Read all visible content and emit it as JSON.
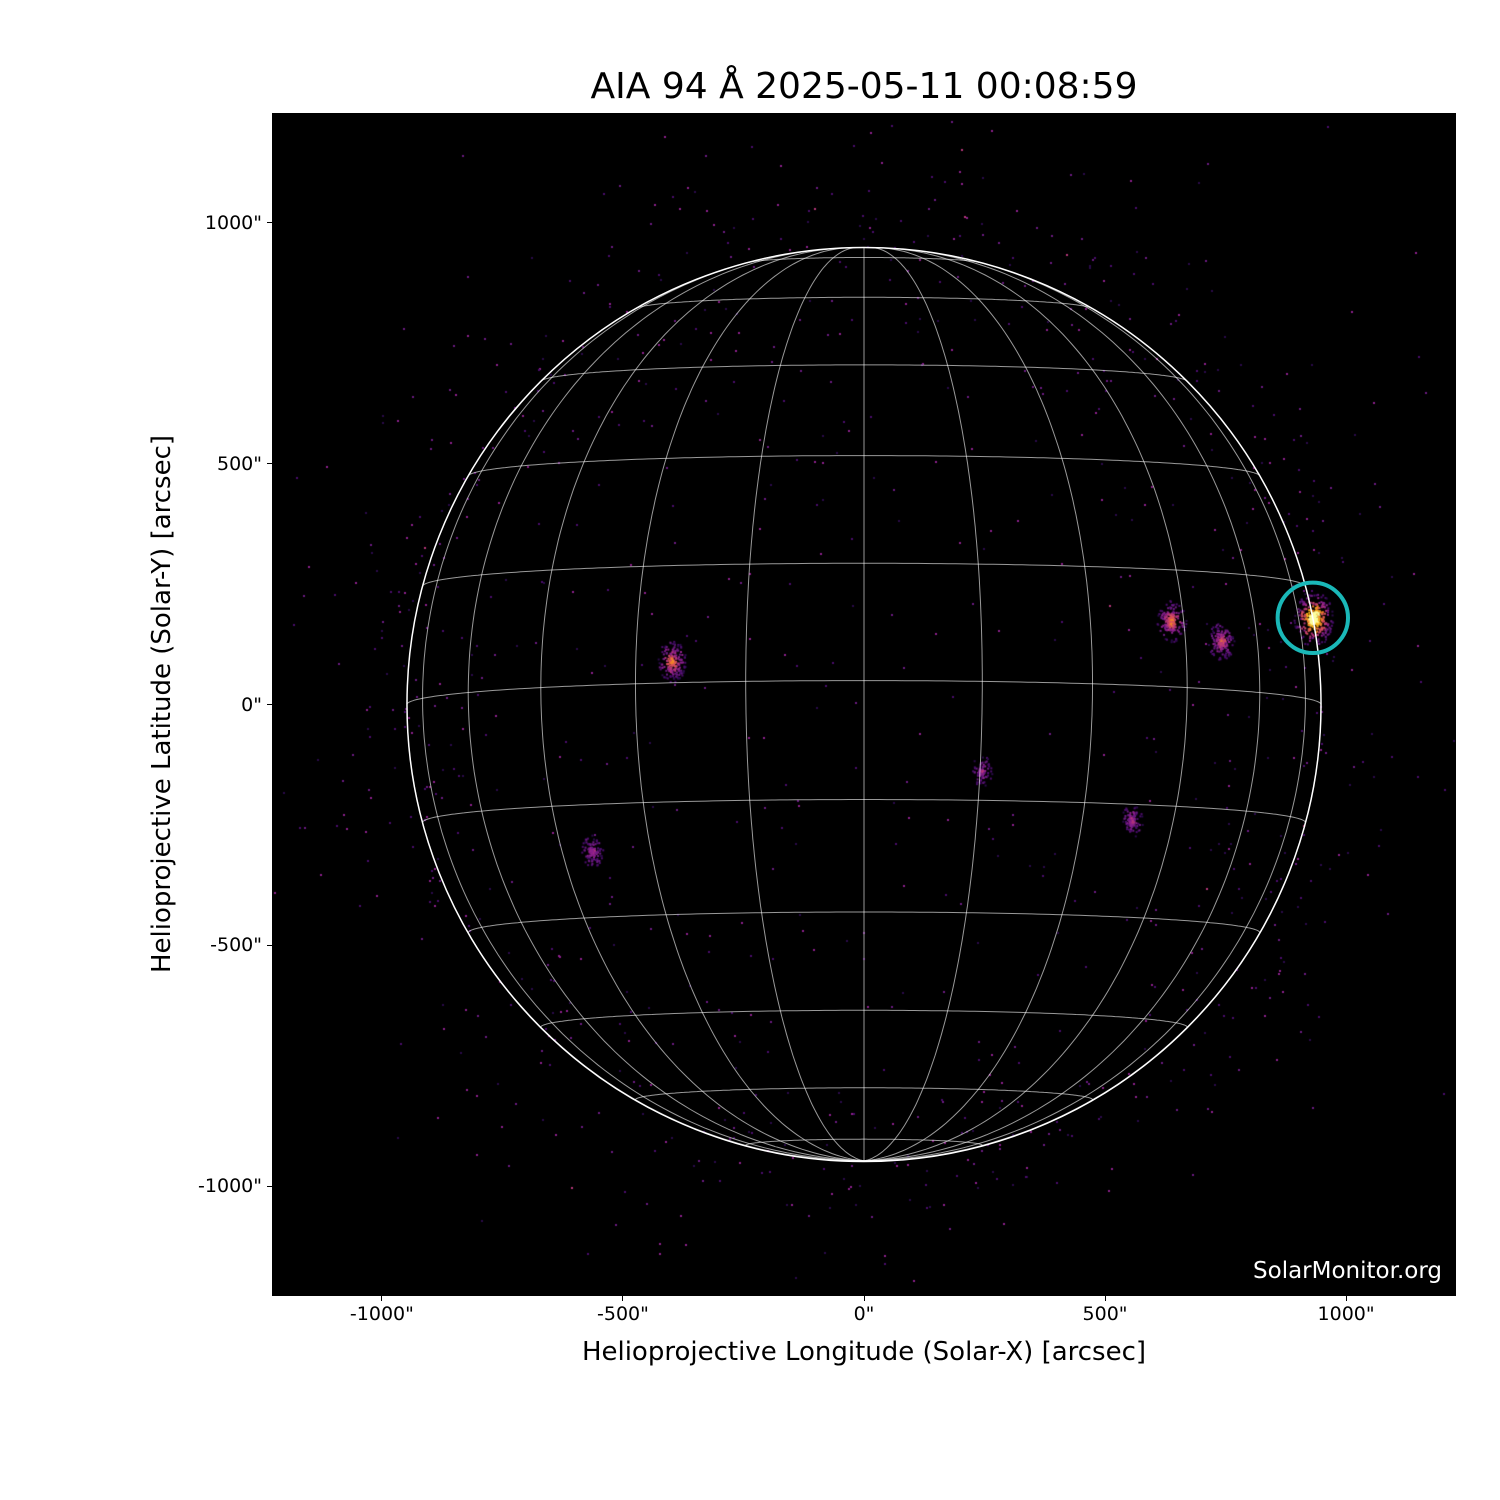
{
  "chart_data": {
    "type": "heatmap",
    "title": "AIA 94 Å 2025-05-11 00:08:59",
    "xlabel": "Helioprojective Longitude (Solar-X) [arcsec]",
    "ylabel": "Helioprojective Latitude (Solar-Y) [arcsec]",
    "xlim": [
      -1228,
      1228
    ],
    "ylim": [
      -1228,
      1228
    ],
    "xticks": [
      -1000,
      -500,
      0,
      500,
      1000
    ],
    "xtick_labels": [
      "-1000\"",
      "-500\"",
      "0\"",
      "500\"",
      "1000\""
    ],
    "yticks": [
      1000,
      500,
      0,
      -500,
      -1000
    ],
    "ytick_labels": [
      "1000\"",
      "500\"",
      "0\"",
      "-500\"",
      "-1000\""
    ],
    "colormap": "inferno-like (black-purple-orange-yellow)",
    "solar_radius_arcsec": 948,
    "heliographic_grid_spacing_deg": 15,
    "b0_deg": -3,
    "grid": true,
    "bright_regions": [
      {
        "x": 931,
        "y": 180,
        "intensity": 1.0
      },
      {
        "x": 637,
        "y": 174,
        "intensity": 0.6
      },
      {
        "x": 740,
        "y": 133,
        "intensity": 0.5
      },
      {
        "x": -400,
        "y": 91,
        "intensity": 0.6
      },
      {
        "x": -566,
        "y": -303,
        "intensity": 0.35
      },
      {
        "x": 554,
        "y": -240,
        "intensity": 0.35
      },
      {
        "x": 243,
        "y": -137,
        "intensity": 0.3
      }
    ],
    "highlight_circle": {
      "x": 931,
      "y": 180,
      "radius_arcsec": 73,
      "color": "#1ab8b8"
    },
    "watermark": "SolarMonitor.org"
  }
}
